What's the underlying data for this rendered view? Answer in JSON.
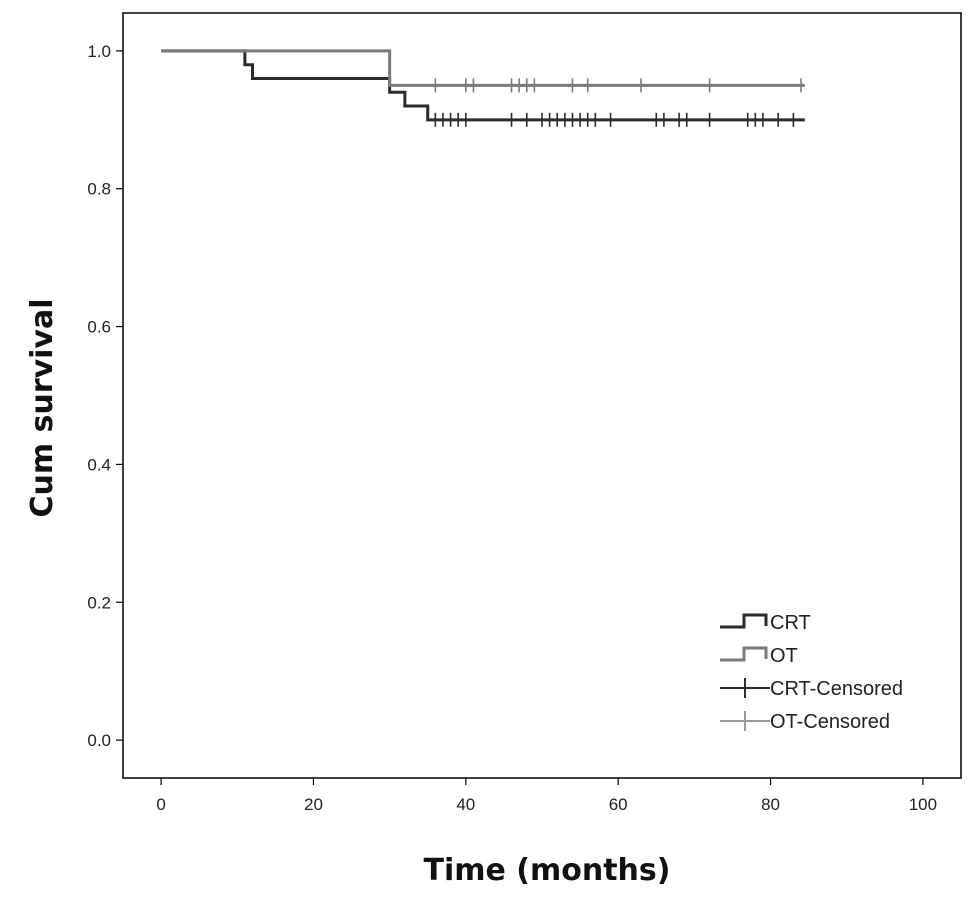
{
  "chart_data": {
    "type": "line",
    "title": "",
    "xlabel": "Time (months)",
    "ylabel": "Cum survival",
    "xlim": [
      -5,
      105
    ],
    "ylim": [
      -0.055,
      1.055
    ],
    "xticks": [
      0,
      20,
      40,
      60,
      80,
      100
    ],
    "xtick_labels": [
      "0",
      "20",
      "40",
      "60",
      "80",
      "100"
    ],
    "yticks": [
      0.0,
      0.2,
      0.4,
      0.6,
      0.8,
      1.0
    ],
    "ytick_labels": [
      "0.0",
      "0.2",
      "0.4",
      "0.6",
      "0.8",
      "1.0"
    ],
    "grid": false,
    "legend_position": "bottom-right",
    "series": [
      {
        "name": "CRT",
        "step": true,
        "color": "#2b2b2b",
        "points": [
          [
            0,
            1.0
          ],
          [
            11,
            0.98
          ],
          [
            12,
            0.96
          ],
          [
            30,
            0.94
          ],
          [
            32,
            0.92
          ],
          [
            35,
            0.9
          ],
          [
            84.5,
            0.9
          ]
        ],
        "censored": [
          36,
          37,
          38,
          39,
          40,
          46,
          48,
          50,
          51,
          52,
          53,
          54,
          55,
          56,
          57,
          59,
          65,
          66,
          68,
          69,
          72,
          77,
          78,
          79,
          81,
          83
        ]
      },
      {
        "name": "OT",
        "step": true,
        "color": "#7a7a7a",
        "points": [
          [
            0,
            1.0
          ],
          [
            30,
            0.95
          ],
          [
            84.5,
            0.95
          ]
        ],
        "censored": [
          36,
          40,
          41,
          46,
          47,
          48,
          49,
          54,
          56,
          63,
          72,
          84
        ]
      }
    ],
    "legend": [
      {
        "label": "CRT",
        "symbol": "step",
        "color": "#2b2b2b"
      },
      {
        "label": "OT",
        "symbol": "step",
        "color": "#7a7a7a"
      },
      {
        "label": "CRT-Censored",
        "symbol": "plus",
        "color": "#2b2b2b"
      },
      {
        "label": "OT-Censored",
        "symbol": "plus",
        "color": "#9a9a9a"
      }
    ]
  }
}
